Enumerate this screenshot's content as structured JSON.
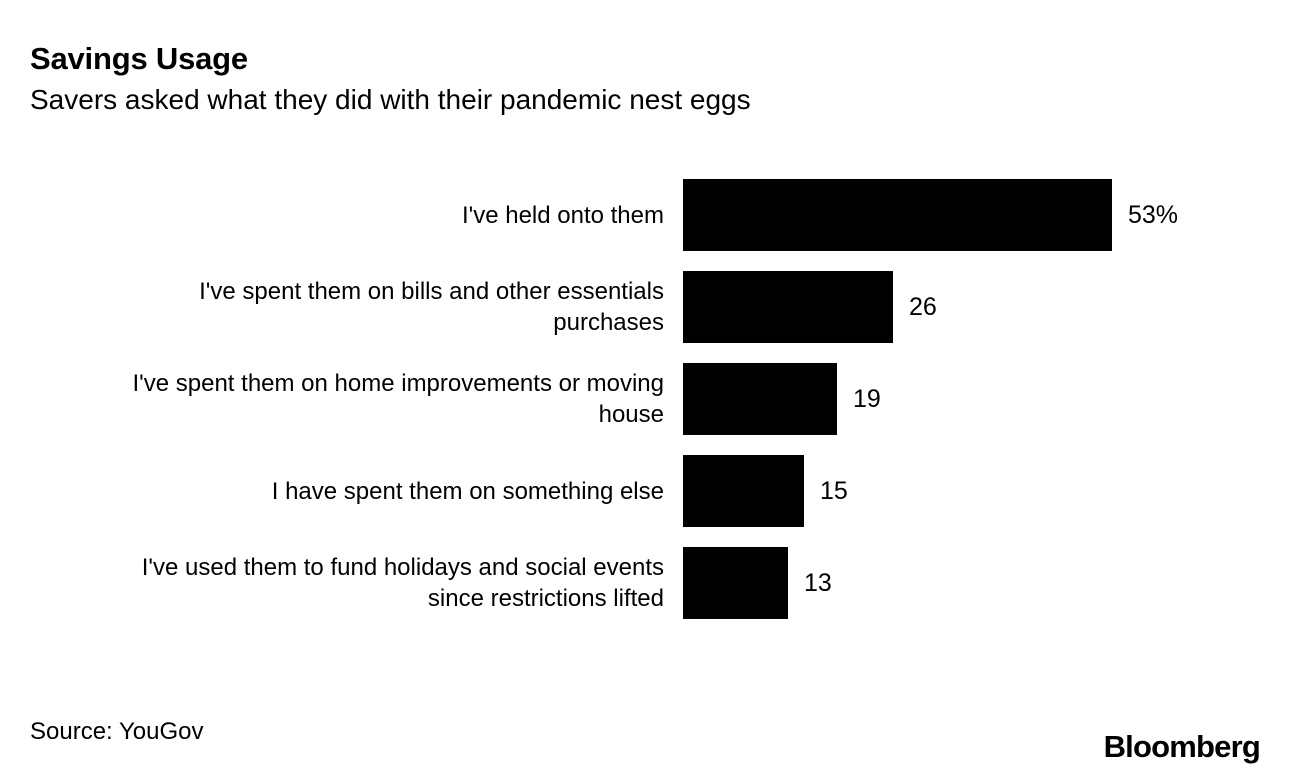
{
  "chart_data": {
    "type": "bar",
    "orientation": "horizontal",
    "title": "Savings Usage",
    "subtitle": "Savers asked what they did with their pandemic nest eggs",
    "categories": [
      [
        "I've held onto them"
      ],
      [
        "I've spent them on bills and other essentials",
        "purchases"
      ],
      [
        "I've spent them on home improvements or moving",
        "house"
      ],
      [
        "I have spent them on something else"
      ],
      [
        "I've used them to fund holidays and social events",
        "since restrictions lifted"
      ]
    ],
    "values": [
      53,
      26,
      19,
      15,
      13
    ],
    "value_labels": [
      "53%",
      "26",
      "19",
      "15",
      "13"
    ],
    "xlim": [
      0,
      53
    ],
    "grid": "off",
    "legend": "none",
    "bar_color": "#000000",
    "background_color": "#ffffff",
    "source": "Source: YouGov",
    "brand": "Bloomberg"
  }
}
